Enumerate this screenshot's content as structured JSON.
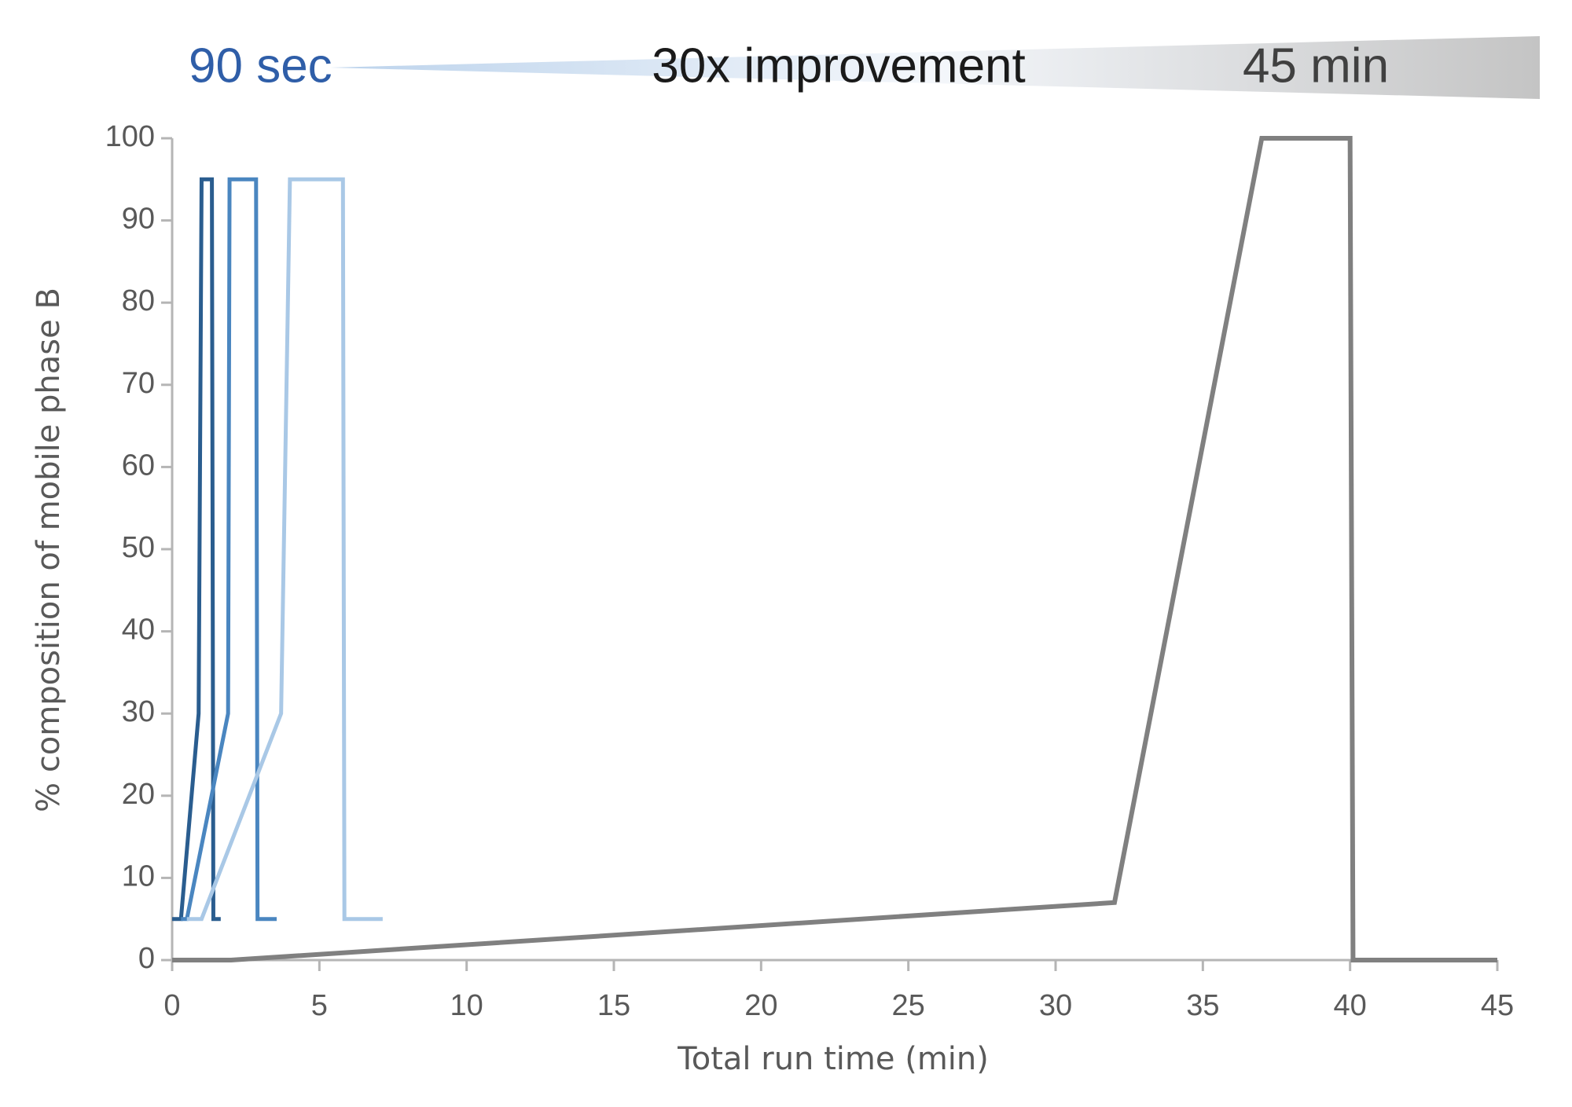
{
  "chart_data": {
    "type": "line",
    "annotations": [
      "90 sec",
      "30x improvement",
      "45 min"
    ],
    "annotation_colors": [
      "#2f5ea8",
      "#1a1a1a",
      "#404040"
    ],
    "xlabel": "Total run time (min)",
    "ylabel": "% composition of mobile phase B",
    "xlim": [
      0,
      45
    ],
    "xticks": [
      0,
      5,
      10,
      15,
      20,
      25,
      30,
      35,
      40,
      45
    ],
    "ylim": [
      0,
      100
    ],
    "yticks": [
      0,
      10,
      20,
      30,
      40,
      50,
      60,
      70,
      80,
      90,
      100
    ],
    "grid": false,
    "series": [
      {
        "color": "#2a5d8f",
        "x": [
          0,
          0.3,
          0.9,
          1.0,
          1.35,
          1.4,
          1.65
        ],
        "values": [
          5,
          5,
          30,
          95,
          95,
          5,
          5
        ]
      },
      {
        "color": "#4a86c0",
        "x": [
          0.3,
          0.5,
          1.9,
          1.95,
          2.85,
          2.9,
          3.55
        ],
        "values": [
          5,
          5,
          30,
          95,
          95,
          5,
          5
        ]
      },
      {
        "color": "#a9c8e6",
        "x": [
          0.5,
          1.0,
          3.7,
          4.0,
          5.8,
          5.85,
          7.15
        ],
        "values": [
          5,
          5,
          30,
          95,
          95,
          5,
          5
        ]
      },
      {
        "color": "#808080",
        "x": [
          0,
          2,
          32,
          37,
          40,
          40.1,
          45
        ],
        "values": [
          0,
          0,
          7,
          100,
          100,
          0,
          0
        ]
      }
    ]
  }
}
